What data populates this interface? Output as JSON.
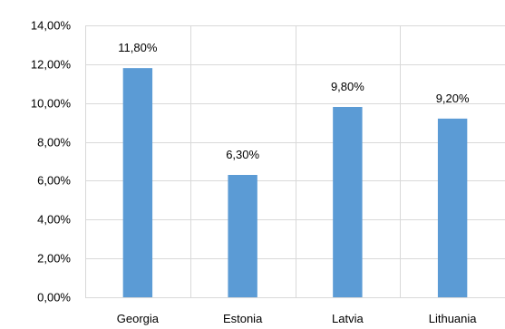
{
  "chart_data": {
    "type": "bar",
    "title": "",
    "xlabel": "",
    "ylabel": "",
    "categories": [
      "Georgia",
      "Estonia",
      "Latvia",
      "Lithuania"
    ],
    "values": [
      11.8,
      6.3,
      9.8,
      9.2
    ],
    "data_labels": [
      "11,80%",
      "6,30%",
      "9,80%",
      "9,20%"
    ],
    "ylim": [
      0,
      14
    ],
    "yticks": [
      0,
      2,
      4,
      6,
      8,
      10,
      12,
      14
    ],
    "ytick_labels": [
      "0,00%",
      "2,00%",
      "4,00%",
      "6,00%",
      "8,00%",
      "10,00%",
      "12,00%",
      "14,00%"
    ],
    "grid": "major gridlines on both axes",
    "legend": "none",
    "colors": {
      "bar": "#5b9bd5",
      "grid": "#d9d9d9",
      "text": "#000000"
    }
  }
}
